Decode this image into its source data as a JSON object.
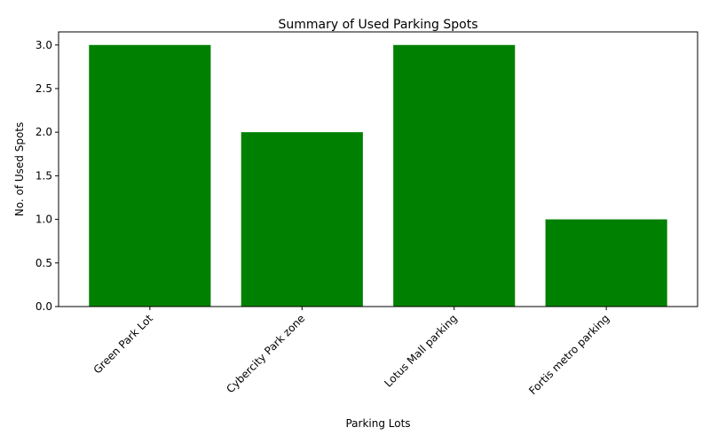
{
  "chart_data": {
    "type": "bar",
    "title": "Summary of Used Parking Spots",
    "xlabel": "Parking Lots",
    "ylabel": "No. of Used Spots",
    "categories": [
      "Green Park Lot",
      "Cybercity Park zone",
      "Lotus Mall parking",
      "Fortis metro parking"
    ],
    "values": [
      3,
      2,
      3,
      1
    ],
    "ylim": [
      0,
      3.15
    ],
    "yticks": [
      "0.0",
      "0.5",
      "1.0",
      "1.5",
      "2.0",
      "2.5",
      "3.0"
    ],
    "grid": false,
    "legend": "none",
    "bar_color": "#008000"
  }
}
